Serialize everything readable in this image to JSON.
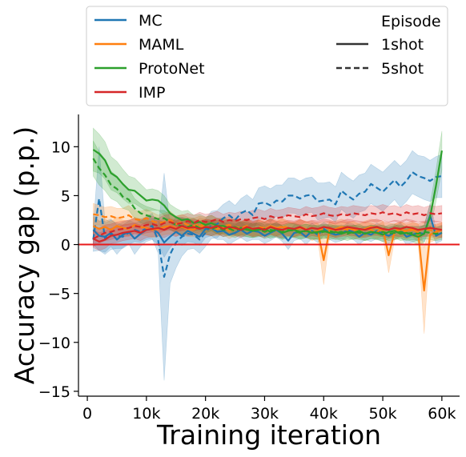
{
  "chart_data": {
    "type": "line",
    "xlabel": "Training iteration",
    "ylabel": "Accuracy gap (p.p.)",
    "xlim": [
      -1500,
      63000
    ],
    "ylim": [
      -15.5,
      13.3
    ],
    "x_ticks": [
      0,
      10000,
      20000,
      30000,
      40000,
      50000,
      60000
    ],
    "x_tick_labels": [
      "0",
      "10k",
      "20k",
      "30k",
      "40k",
      "50k",
      "60k"
    ],
    "y_ticks": [
      -15,
      -10,
      -5,
      0,
      5,
      10
    ],
    "y_tick_labels": [
      "−15",
      "−10",
      "−5",
      "0",
      "5",
      "10"
    ],
    "reference_line": {
      "y": 0,
      "color": "#e8191a"
    },
    "legend": {
      "placement": "top",
      "methods": [
        {
          "name": "MC",
          "color": "#1f77b4"
        },
        {
          "name": "MAML",
          "color": "#ff7f0e"
        },
        {
          "name": "ProtoNet",
          "color": "#2ca02c"
        },
        {
          "name": "IMP",
          "color": "#d62728"
        }
      ],
      "style_title": "Episode",
      "styles": [
        {
          "name": "1shot",
          "dash": "solid"
        },
        {
          "name": "5shot",
          "dash": "dashed"
        }
      ]
    },
    "x": [
      1000,
      2000,
      3000,
      4000,
      5000,
      6000,
      7000,
      8000,
      9000,
      10000,
      11000,
      12000,
      13000,
      14000,
      15000,
      16000,
      17000,
      18000,
      19000,
      20000,
      21000,
      22000,
      23000,
      24000,
      25000,
      26000,
      27000,
      28000,
      29000,
      30000,
      31000,
      32000,
      33000,
      34000,
      35000,
      36000,
      37000,
      38000,
      39000,
      40000,
      41000,
      42000,
      43000,
      44000,
      45000,
      46000,
      47000,
      48000,
      49000,
      50000,
      51000,
      52000,
      53000,
      54000,
      55000,
      56000,
      57000,
      58000,
      59000,
      60000
    ],
    "series": [
      {
        "method": "MC",
        "episode": "1shot",
        "color": "#1f77b4",
        "dash": "solid",
        "values": [
          1.5,
          0.9,
          0.8,
          1.2,
          0.5,
          1.0,
          1.3,
          0.6,
          1.1,
          1.5,
          1.6,
          1.2,
          0.2,
          0.8,
          1.3,
          0.9,
          1.4,
          1.1,
          0.8,
          1.6,
          1.7,
          1.3,
          1.4,
          1.0,
          1.2,
          1.5,
          1.1,
          1.4,
          1.3,
          0.9,
          1.2,
          1.5,
          1.1,
          0.4,
          1.2,
          1.3,
          0.8,
          1.4,
          1.0,
          1.6,
          1.2,
          1.0,
          1.1,
          1.5,
          1.3,
          0.8,
          1.2,
          1.0,
          1.4,
          1.1,
          0.9,
          1.2,
          1.5,
          0.8,
          1.0,
          1.2,
          1.1,
          3.0,
          0.9,
          1.2
        ],
        "band": [
          1.5,
          1.5,
          1.6,
          1.4,
          1.5,
          1.3,
          1.2,
          1.6,
          1.3,
          1.2,
          1.1,
          1.2,
          1.5,
          1.1,
          1.0,
          1.0,
          1.1,
          0.9,
          0.9,
          0.9,
          0.8,
          0.8,
          0.9,
          1.0,
          0.8,
          0.8,
          0.8,
          0.9,
          0.8,
          0.8,
          0.8,
          0.7,
          0.8,
          0.9,
          0.8,
          0.7,
          0.8,
          0.8,
          0.8,
          0.7,
          0.7,
          0.8,
          0.7,
          0.7,
          0.8,
          0.8,
          0.7,
          0.7,
          0.8,
          0.8,
          0.8,
          0.7,
          0.7,
          0.8,
          0.8,
          0.7,
          0.8,
          1.2,
          0.8,
          0.8
        ]
      },
      {
        "method": "MC",
        "episode": "5shot",
        "color": "#1f77b4",
        "dash": "dashed",
        "values": [
          0.5,
          4.7,
          0.6,
          1.0,
          0.9,
          0.8,
          1.2,
          1.5,
          1.3,
          1.7,
          1.9,
          0.4,
          -3.3,
          -1.0,
          0.2,
          0.8,
          1.1,
          1.0,
          0.5,
          1.2,
          2.0,
          2.1,
          2.7,
          3.0,
          2.5,
          3.2,
          3.5,
          3.0,
          4.2,
          4.3,
          4.0,
          4.5,
          4.4,
          5.0,
          5.0,
          4.7,
          5.0,
          5.1,
          4.4,
          4.5,
          4.6,
          4.1,
          5.5,
          5.0,
          4.6,
          5.2,
          5.4,
          6.2,
          5.8,
          5.4,
          6.0,
          6.6,
          5.9,
          6.5,
          7.4,
          7.0,
          6.8,
          6.5,
          6.9,
          7.0
        ],
        "band": [
          1.2,
          5.3,
          1.6,
          1.5,
          1.3,
          1.2,
          1.2,
          1.2,
          1.1,
          1.2,
          1.3,
          1.3,
          10.6,
          3.0,
          2.6,
          2.0,
          1.6,
          1.4,
          1.4,
          1.4,
          1.4,
          1.4,
          1.4,
          1.5,
          1.5,
          1.5,
          1.6,
          1.6,
          1.6,
          1.7,
          1.7,
          1.6,
          1.7,
          1.8,
          1.8,
          1.8,
          1.8,
          1.8,
          1.9,
          1.8,
          1.8,
          1.8,
          1.9,
          1.9,
          1.9,
          1.9,
          1.9,
          2.0,
          2.0,
          2.0,
          2.0,
          2.0,
          2.1,
          2.1,
          2.2,
          2.1,
          2.2,
          2.1,
          2.1,
          2.2
        ]
      },
      {
        "method": "MAML",
        "episode": "1shot",
        "color": "#ff7f0e",
        "dash": "solid",
        "values": [
          1.9,
          1.6,
          1.8,
          1.5,
          1.9,
          1.7,
          1.6,
          2.0,
          1.8,
          1.7,
          1.5,
          1.6,
          1.8,
          1.9,
          1.7,
          1.8,
          1.6,
          1.5,
          1.9,
          1.8,
          1.7,
          1.6,
          1.8,
          1.4,
          1.7,
          1.6,
          1.8,
          1.5,
          1.7,
          1.6,
          1.9,
          1.7,
          1.8,
          1.6,
          1.5,
          1.7,
          1.6,
          1.2,
          1.4,
          -1.6,
          1.5,
          1.6,
          1.8,
          1.7,
          1.5,
          1.4,
          1.6,
          1.8,
          1.7,
          1.6,
          -1.1,
          1.3,
          1.5,
          1.4,
          1.6,
          1.2,
          -4.7,
          1.0,
          1.3,
          1.5
        ],
        "band": [
          0.9,
          0.8,
          0.8,
          0.8,
          0.9,
          0.8,
          0.8,
          0.8,
          0.8,
          0.8,
          0.8,
          0.8,
          0.8,
          0.8,
          0.8,
          0.8,
          0.8,
          0.7,
          0.8,
          0.8,
          0.8,
          0.7,
          0.8,
          0.8,
          0.8,
          0.7,
          0.8,
          0.7,
          0.8,
          0.7,
          0.8,
          0.8,
          0.8,
          0.7,
          0.8,
          0.8,
          0.8,
          0.8,
          0.8,
          2.5,
          0.8,
          0.8,
          0.8,
          0.7,
          0.8,
          0.8,
          0.8,
          0.8,
          0.8,
          0.8,
          1.8,
          0.8,
          0.8,
          0.8,
          0.8,
          0.9,
          4.4,
          0.8,
          0.8,
          0.8
        ]
      },
      {
        "method": "MAML",
        "episode": "5shot",
        "color": "#ff7f0e",
        "dash": "dashed",
        "values": [
          3.1,
          3.0,
          2.8,
          2.9,
          2.7,
          2.8,
          3.0,
          2.6,
          2.5,
          2.7,
          2.4,
          2.2,
          2.3,
          2.5,
          2.1,
          2.3,
          2.0,
          1.9,
          2.1,
          2.0,
          2.2,
          1.8,
          1.9,
          2.0,
          1.8,
          1.7,
          1.9,
          1.6,
          1.8,
          1.7,
          1.8,
          1.6,
          1.9,
          1.7,
          1.5,
          1.8,
          1.6,
          1.7,
          1.5,
          1.6,
          1.7,
          1.4,
          1.6,
          1.5,
          1.7,
          1.4,
          1.6,
          1.5,
          1.3,
          1.6,
          1.5,
          1.4,
          1.6,
          1.3,
          1.5,
          1.4,
          1.6,
          1.5,
          1.3,
          1.5
        ],
        "band": [
          1.1,
          1.0,
          1.0,
          1.0,
          1.0,
          0.9,
          1.0,
          0.9,
          0.9,
          0.9,
          0.9,
          0.8,
          0.9,
          0.9,
          0.8,
          0.8,
          0.8,
          0.8,
          0.8,
          0.8,
          0.8,
          0.8,
          0.8,
          0.8,
          0.8,
          0.7,
          0.8,
          0.7,
          0.8,
          0.7,
          0.8,
          0.7,
          0.8,
          0.7,
          0.7,
          0.8,
          0.7,
          0.7,
          0.7,
          0.7,
          0.7,
          0.7,
          0.7,
          0.7,
          0.7,
          0.7,
          0.7,
          0.7,
          0.7,
          0.7,
          0.7,
          0.7,
          0.7,
          0.7,
          0.7,
          0.7,
          0.7,
          0.7,
          0.7,
          0.7
        ]
      },
      {
        "method": "ProtoNet",
        "episode": "1shot",
        "color": "#2ca02c",
        "dash": "solid",
        "values": [
          9.7,
          9.3,
          8.6,
          7.3,
          6.9,
          6.2,
          5.6,
          5.5,
          5.0,
          4.5,
          4.6,
          4.5,
          4.0,
          3.2,
          2.8,
          2.5,
          2.6,
          2.2,
          2.3,
          2.0,
          2.2,
          1.9,
          1.9,
          1.7,
          1.8,
          1.5,
          1.6,
          1.4,
          1.5,
          1.6,
          1.3,
          1.6,
          1.2,
          1.4,
          1.5,
          1.3,
          1.4,
          1.2,
          1.3,
          1.4,
          1.2,
          1.3,
          1.1,
          1.3,
          1.2,
          1.4,
          1.1,
          1.3,
          1.2,
          1.0,
          1.3,
          1.4,
          1.1,
          1.2,
          1.0,
          0.8,
          1.1,
          2.8,
          6.0,
          9.6
        ],
        "band": [
          2.2,
          2.0,
          1.9,
          1.7,
          1.6,
          1.5,
          1.4,
          1.3,
          1.2,
          1.1,
          1.1,
          1.0,
          1.0,
          0.9,
          0.9,
          0.9,
          0.9,
          0.8,
          0.8,
          0.8,
          0.8,
          0.8,
          0.8,
          0.8,
          0.8,
          0.7,
          0.8,
          0.7,
          0.7,
          0.7,
          0.7,
          0.7,
          0.7,
          0.7,
          0.7,
          0.7,
          0.7,
          0.7,
          0.7,
          0.7,
          0.7,
          0.7,
          0.7,
          0.7,
          0.7,
          0.7,
          0.7,
          0.7,
          0.7,
          0.7,
          0.7,
          0.7,
          0.7,
          0.7,
          0.7,
          0.8,
          0.9,
          1.3,
          1.6,
          2.0
        ]
      },
      {
        "method": "ProtoNet",
        "episode": "5shot",
        "color": "#2ca02c",
        "dash": "dashed",
        "values": [
          8.8,
          7.8,
          7.1,
          6.1,
          5.7,
          4.9,
          4.6,
          3.7,
          3.2,
          3.0,
          2.8,
          2.6,
          2.7,
          2.3,
          2.0,
          1.9,
          1.8,
          2.0,
          1.7,
          1.8,
          1.6,
          1.8,
          1.5,
          1.6,
          1.4,
          1.7,
          1.5,
          1.4,
          1.6,
          1.3,
          1.5,
          1.4,
          1.3,
          1.5,
          1.4,
          1.2,
          1.4,
          1.3,
          1.2,
          1.3,
          1.4,
          1.2,
          1.3,
          1.1,
          1.3,
          1.2,
          1.1,
          1.3,
          1.2,
          1.3,
          1.1,
          1.2,
          1.3,
          1.1,
          1.2,
          1.1,
          1.3,
          1.2,
          1.1,
          1.2
        ],
        "band": [
          1.8,
          1.7,
          1.6,
          1.4,
          1.3,
          1.2,
          1.1,
          1.0,
          1.0,
          0.9,
          0.9,
          0.9,
          0.8,
          0.8,
          0.8,
          0.8,
          0.8,
          0.7,
          0.7,
          0.7,
          0.7,
          0.7,
          0.7,
          0.7,
          0.7,
          0.7,
          0.7,
          0.7,
          0.7,
          0.7,
          0.7,
          0.7,
          0.7,
          0.7,
          0.7,
          0.7,
          0.7,
          0.7,
          0.7,
          0.7,
          0.7,
          0.7,
          0.7,
          0.7,
          0.7,
          0.7,
          0.7,
          0.7,
          0.7,
          0.7,
          0.7,
          0.7,
          0.7,
          0.7,
          0.7,
          0.7,
          0.7,
          0.7,
          0.7,
          0.7
        ]
      },
      {
        "method": "IMP",
        "episode": "1shot",
        "color": "#d62728",
        "dash": "solid",
        "values": [
          0.6,
          0.3,
          0.5,
          0.9,
          1.0,
          1.2,
          1.3,
          1.4,
          1.2,
          1.5,
          1.6,
          1.7,
          1.5,
          1.8,
          1.6,
          1.9,
          1.7,
          1.8,
          1.6,
          1.8,
          1.7,
          1.9,
          1.6,
          1.8,
          1.7,
          1.5,
          1.8,
          1.6,
          1.7,
          1.5,
          1.8,
          1.6,
          1.5,
          1.7,
          1.6,
          1.8,
          1.5,
          1.7,
          1.6,
          1.8,
          1.7,
          1.5,
          1.6,
          1.8,
          1.7,
          1.6,
          1.5,
          1.7,
          1.8,
          1.6,
          1.5,
          1.7,
          1.6,
          1.8,
          1.7,
          1.5,
          1.6,
          1.7,
          1.6,
          1.5
        ],
        "band": [
          0.9,
          0.9,
          0.9,
          0.8,
          0.8,
          0.8,
          0.8,
          0.8,
          0.8,
          0.8,
          0.8,
          0.8,
          0.8,
          0.8,
          0.8,
          0.8,
          0.8,
          0.8,
          0.8,
          0.8,
          0.8,
          0.8,
          0.8,
          0.8,
          0.8,
          0.8,
          0.8,
          0.8,
          0.8,
          0.8,
          0.8,
          0.8,
          0.8,
          0.8,
          0.8,
          0.8,
          0.8,
          0.8,
          0.8,
          0.8,
          0.8,
          0.8,
          0.8,
          0.8,
          0.8,
          0.8,
          0.8,
          0.8,
          0.8,
          0.8,
          0.8,
          0.8,
          0.8,
          0.8,
          0.8,
          0.8,
          0.8,
          0.8,
          0.8,
          0.8
        ]
      },
      {
        "method": "IMP",
        "episode": "5shot",
        "color": "#d62728",
        "dash": "dashed",
        "values": [
          0.6,
          0.9,
          1.2,
          1.3,
          1.5,
          1.6,
          1.7,
          1.9,
          1.8,
          2.0,
          2.1,
          1.9,
          2.2,
          2.3,
          2.1,
          2.2,
          2.4,
          2.2,
          2.5,
          2.3,
          2.4,
          2.6,
          2.3,
          2.5,
          2.4,
          2.6,
          2.5,
          2.7,
          2.8,
          2.6,
          2.9,
          2.7,
          2.8,
          3.0,
          2.9,
          2.8,
          3.1,
          2.9,
          3.0,
          3.2,
          3.0,
          2.9,
          3.1,
          3.0,
          3.2,
          3.1,
          3.0,
          3.2,
          3.1,
          3.3,
          3.1,
          3.2,
          3.0,
          3.3,
          3.1,
          3.2,
          3.0,
          3.2,
          3.1,
          3.2
        ],
        "band": [
          0.8,
          0.8,
          0.8,
          0.8,
          0.8,
          0.8,
          0.8,
          0.8,
          0.8,
          0.8,
          0.8,
          0.8,
          0.8,
          0.8,
          0.8,
          0.8,
          0.8,
          0.8,
          0.8,
          0.8,
          0.8,
          0.8,
          0.8,
          0.8,
          0.8,
          0.8,
          0.8,
          0.8,
          0.8,
          0.8,
          0.8,
          0.8,
          0.8,
          0.8,
          0.8,
          0.8,
          0.8,
          0.8,
          0.8,
          0.8,
          0.8,
          0.8,
          0.8,
          0.8,
          0.8,
          0.8,
          0.8,
          0.8,
          0.8,
          0.8,
          0.8,
          0.8,
          0.8,
          0.8,
          0.8,
          0.8,
          0.8,
          0.8,
          0.8,
          0.8
        ]
      }
    ]
  }
}
